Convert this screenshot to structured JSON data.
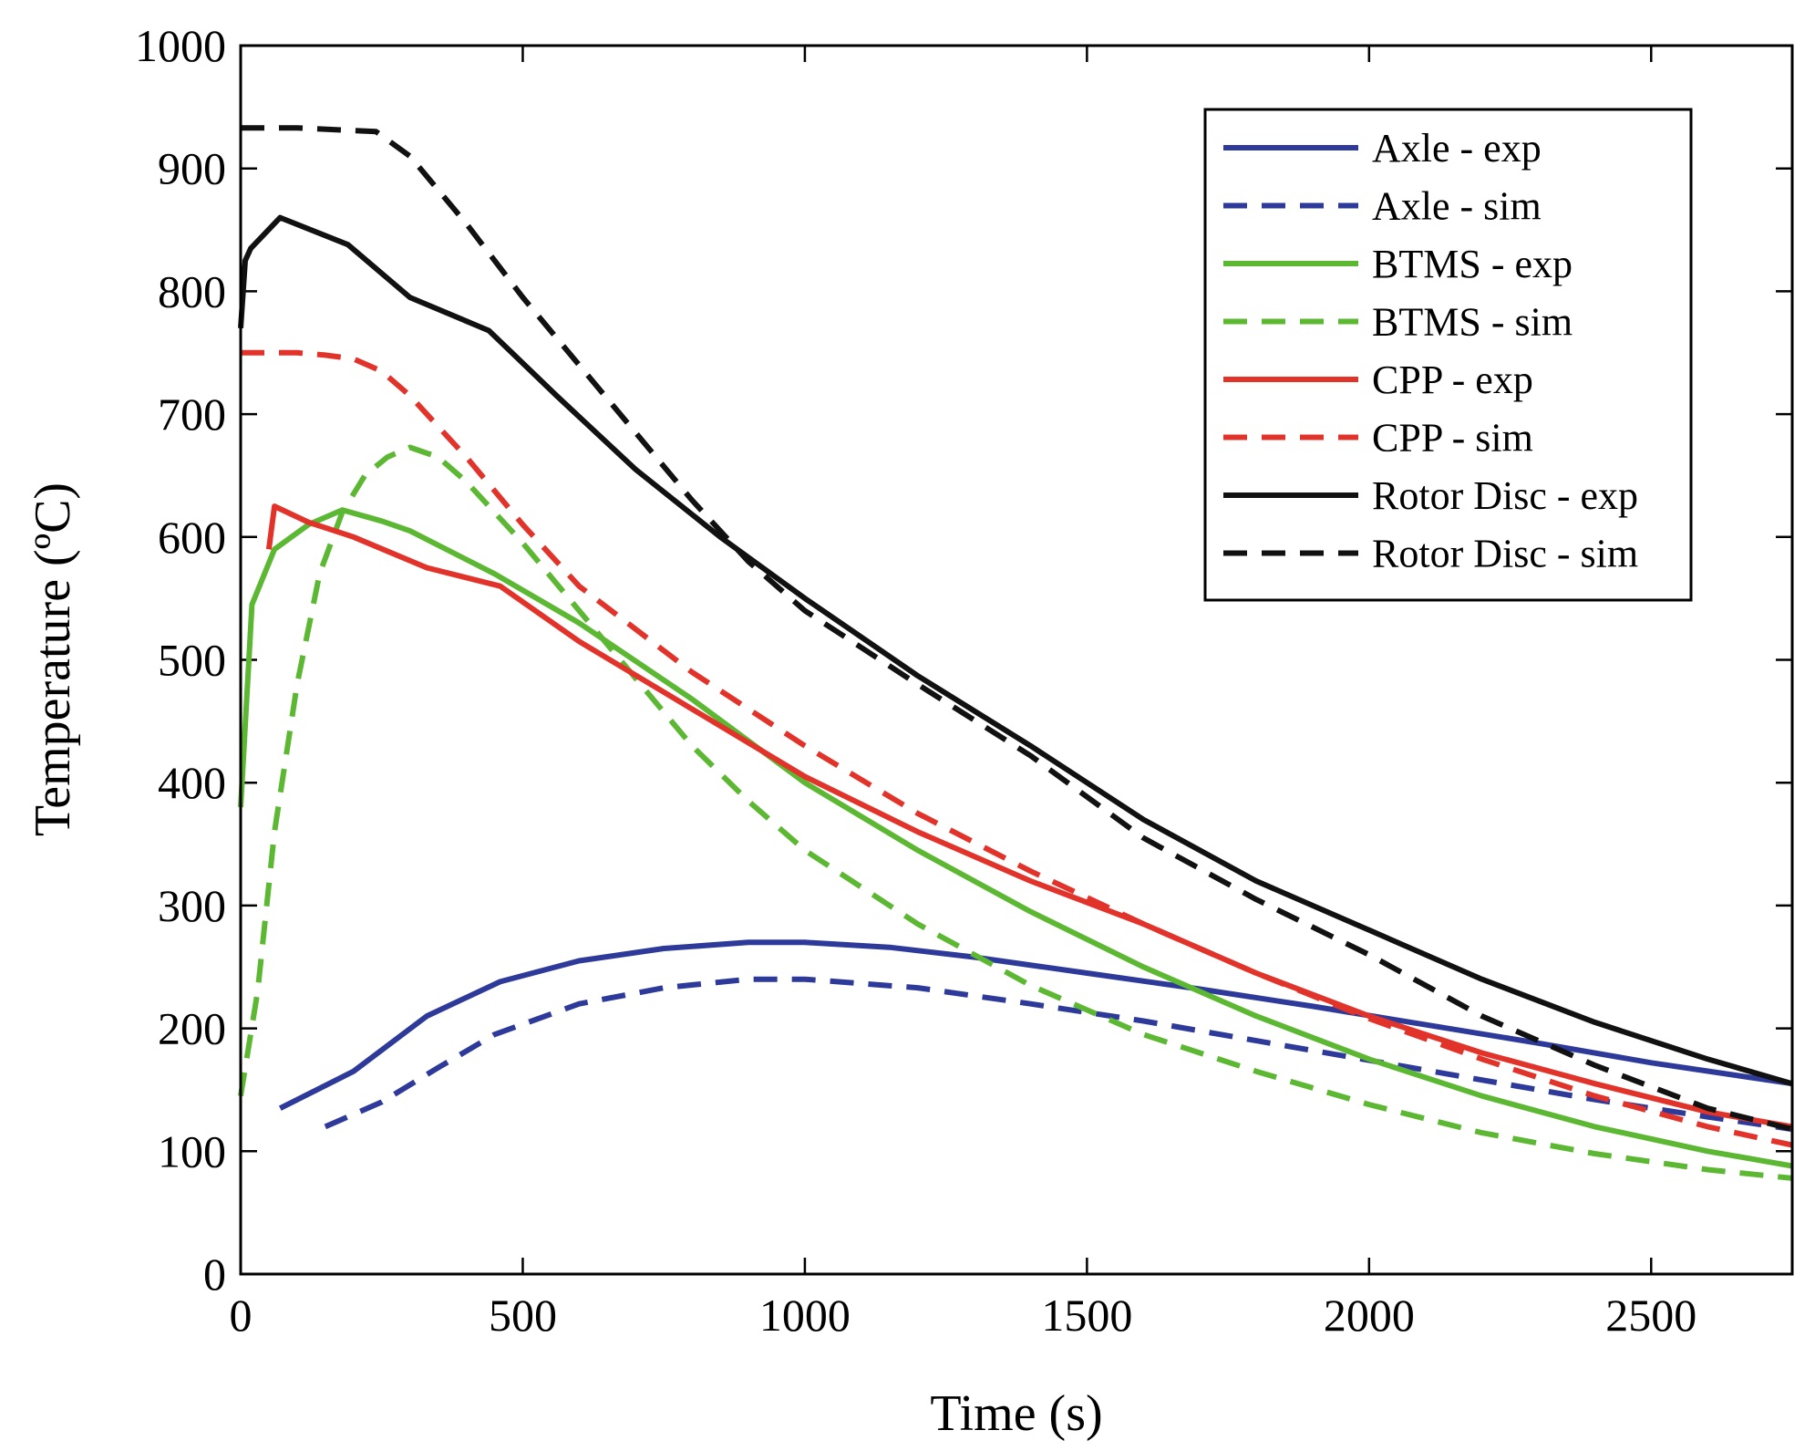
{
  "chart_data": {
    "type": "line",
    "xlabel": "Time (s)",
    "ylabel": "Temperature (ºC)",
    "xlim": [
      0,
      2750
    ],
    "ylim": [
      0,
      1000
    ],
    "xticks": [
      0,
      500,
      1000,
      1500,
      2000,
      2500
    ],
    "yticks": [
      0,
      100,
      200,
      300,
      400,
      500,
      600,
      700,
      800,
      900,
      1000
    ],
    "xtick_labels": [
      "0",
      "500",
      "1000",
      "1500",
      "2000",
      "2500"
    ],
    "ytick_labels": [
      "0",
      "100",
      "200",
      "300",
      "400",
      "500",
      "600",
      "700",
      "800",
      "900",
      "1000"
    ],
    "legend_position": "top-right",
    "series": [
      {
        "name": "Axle - exp",
        "color": "#2e3a9a",
        "dashed": false,
        "x": [
          70,
          200,
          330,
          460,
          600,
          750,
          900,
          1000,
          1150,
          1300,
          1500,
          1700,
          1900,
          2100,
          2300,
          2500,
          2750
        ],
        "y": [
          135,
          165,
          210,
          238,
          255,
          265,
          270,
          270,
          266,
          258,
          245,
          232,
          218,
          203,
          188,
          172,
          155
        ]
      },
      {
        "name": "Axle - sim",
        "color": "#2e3a9a",
        "dashed": true,
        "x": [
          150,
          250,
          350,
          450,
          600,
          750,
          900,
          1000,
          1200,
          1400,
          1600,
          1800,
          2000,
          2200,
          2400,
          2600,
          2750
        ],
        "y": [
          120,
          140,
          168,
          195,
          220,
          233,
          240,
          240,
          233,
          220,
          206,
          190,
          174,
          158,
          142,
          128,
          118
        ]
      },
      {
        "name": "BTMS - exp",
        "color": "#5cb832",
        "dashed": false,
        "x": [
          0,
          20,
          60,
          120,
          180,
          250,
          300,
          450,
          600,
          800,
          1000,
          1200,
          1400,
          1600,
          1800,
          2000,
          2200,
          2400,
          2600,
          2750
        ],
        "y": [
          380,
          545,
          590,
          610,
          622,
          613,
          605,
          570,
          530,
          468,
          400,
          345,
          295,
          250,
          210,
          175,
          145,
          120,
          100,
          88
        ]
      },
      {
        "name": "BTMS - sim",
        "color": "#5cb832",
        "dashed": true,
        "x": [
          0,
          30,
          60,
          100,
          140,
          180,
          220,
          260,
          300,
          350,
          400,
          500,
          600,
          700,
          800,
          900,
          1000,
          1200,
          1400,
          1600,
          1800,
          2000,
          2200,
          2400,
          2600,
          2750
        ],
        "y": [
          145,
          230,
          360,
          480,
          570,
          620,
          650,
          665,
          673,
          665,
          645,
          595,
          540,
          485,
          430,
          385,
          345,
          285,
          235,
          195,
          165,
          138,
          115,
          98,
          85,
          78
        ]
      },
      {
        "name": "CPP - exp",
        "color": "#e2332b",
        "dashed": false,
        "x": [
          50,
          60,
          120,
          200,
          330,
          460,
          600,
          800,
          1000,
          1200,
          1400,
          1600,
          1800,
          2000,
          2200,
          2400,
          2600,
          2750
        ],
        "y": [
          590,
          625,
          612,
          600,
          575,
          560,
          515,
          460,
          405,
          360,
          320,
          285,
          245,
          210,
          180,
          155,
          132,
          120
        ]
      },
      {
        "name": "CPP - sim",
        "color": "#e2332b",
        "dashed": true,
        "x": [
          0,
          100,
          150,
          200,
          250,
          300,
          350,
          400,
          500,
          600,
          800,
          1000,
          1200,
          1400,
          1600,
          1800,
          2000,
          2200,
          2400,
          2600,
          2750
        ],
        "y": [
          750,
          750,
          748,
          745,
          735,
          715,
          690,
          665,
          610,
          560,
          490,
          430,
          375,
          328,
          285,
          245,
          208,
          175,
          145,
          120,
          105
        ]
      },
      {
        "name": "Rotor Disc - exp",
        "color": "#111111",
        "dashed": false,
        "x": [
          0,
          8,
          18,
          70,
          190,
          300,
          440,
          560,
          700,
          850,
          1000,
          1200,
          1400,
          1600,
          1800,
          2000,
          2200,
          2400,
          2600,
          2750
        ],
        "y": [
          770,
          825,
          835,
          860,
          838,
          795,
          768,
          715,
          655,
          600,
          550,
          487,
          430,
          370,
          320,
          280,
          240,
          205,
          175,
          155
        ]
      },
      {
        "name": "Rotor Disc - sim",
        "color": "#111111",
        "dashed": true,
        "x": [
          0,
          100,
          240,
          300,
          400,
          500,
          600,
          700,
          800,
          900,
          1000,
          1200,
          1400,
          1600,
          1800,
          2000,
          2200,
          2400,
          2600,
          2750
        ],
        "y": [
          933,
          933,
          930,
          910,
          855,
          795,
          740,
          685,
          630,
          580,
          540,
          480,
          422,
          355,
          305,
          260,
          210,
          170,
          135,
          118
        ]
      }
    ]
  }
}
